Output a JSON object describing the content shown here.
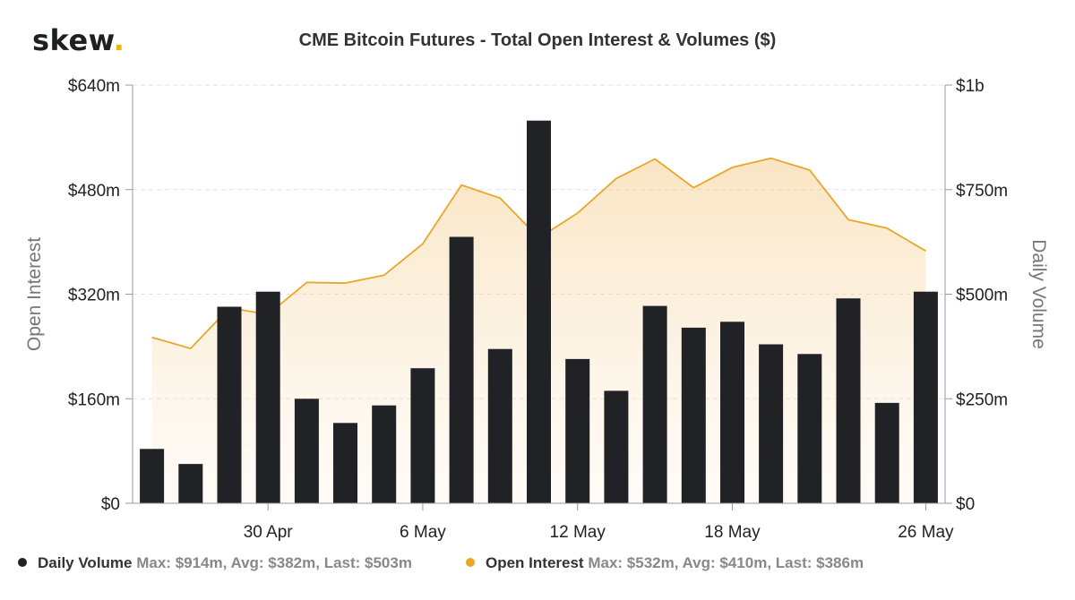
{
  "logo": {
    "text": "skew",
    "dot": "."
  },
  "chart_data": {
    "type": "bar",
    "title": "CME Bitcoin Futures - Total Open Interest & Volumes ($)",
    "x_tick_labels": [
      "30 Apr",
      "6 May",
      "12 May",
      "18 May",
      "26 May"
    ],
    "left_axis": {
      "label": "Open Interest",
      "ticks": [
        "$0",
        "$160m",
        "$320m",
        "$480m",
        "$640m"
      ],
      "range": [
        0,
        640
      ]
    },
    "right_axis": {
      "label": "Daily Volume",
      "ticks": [
        "$0",
        "$250m",
        "$500m",
        "$750m",
        "$1b"
      ],
      "range": [
        0,
        1000
      ]
    },
    "grid": true,
    "legend_position": "bottom-left",
    "series": [
      {
        "name": "Daily Volume",
        "type": "bar",
        "axis": "right",
        "color": "#212226",
        "values": [
          130,
          94,
          470,
          506,
          250,
          192,
          234,
          323,
          637,
          369,
          915,
          345,
          269,
          472,
          420,
          434,
          380,
          357,
          490,
          240,
          506
        ]
      },
      {
        "name": "Open Interest",
        "type": "area",
        "axis": "left",
        "color": "#e9a62a",
        "values": [
          254,
          237,
          299,
          289,
          338,
          337,
          349,
          397,
          487,
          467,
          406,
          444,
          497,
          527,
          483,
          514,
          528,
          510,
          434,
          421,
          386
        ]
      }
    ]
  },
  "legend": [
    {
      "name": "Daily Volume",
      "stats": "Max: $914m, Avg: $382m, Last: $503m",
      "color": "#212226"
    },
    {
      "name": "Open Interest",
      "stats": "Max: $532m, Avg: $410m, Last: $386m",
      "color": "#e9a62a"
    }
  ]
}
